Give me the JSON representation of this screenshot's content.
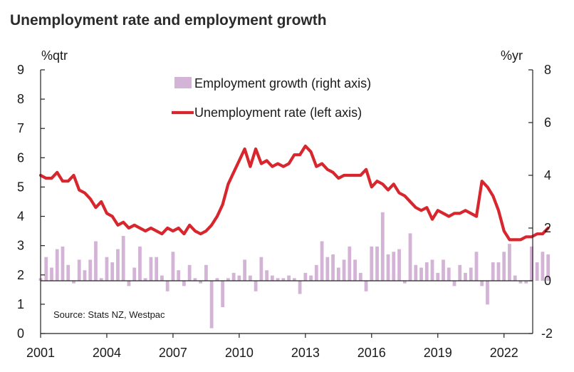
{
  "chart_data": {
    "type": "bar+line",
    "title": "Unemployment rate and employment growth",
    "left_axis_label": "%qtr",
    "right_axis_label": "%yr",
    "left_ylim": [
      0,
      9
    ],
    "right_ylim": [
      -2,
      8
    ],
    "left_ticks": [
      "0",
      "1",
      "2",
      "3",
      "4",
      "5",
      "6",
      "7",
      "8",
      "9"
    ],
    "right_ticks": [
      "-2",
      "0",
      "2",
      "4",
      "6",
      "8"
    ],
    "x_ticks": [
      "2001",
      "2004",
      "2007",
      "2010",
      "2013",
      "2016",
      "2019",
      "2022"
    ],
    "x_tick_years": [
      2001,
      2004,
      2007,
      2010,
      2013,
      2016,
      2019,
      2022
    ],
    "x_range": [
      2001,
      2023.3
    ],
    "start_year": 2001.0,
    "step_years": 0.25,
    "legend": {
      "bars": "Employment growth (right axis)",
      "line": "Unemployment rate (left axis)"
    },
    "source": "Source: Stats NZ, Westpac",
    "colors": {
      "bars": "#d4b4d6",
      "line": "#d7262d",
      "axis": "#222222"
    },
    "series": [
      {
        "name": "Unemployment rate (left axis)",
        "axis": "left",
        "type": "line",
        "values": [
          5.4,
          5.3,
          5.3,
          5.5,
          5.2,
          5.2,
          5.4,
          4.9,
          4.8,
          4.6,
          4.3,
          4.5,
          4.1,
          4.0,
          3.7,
          3.8,
          3.6,
          3.7,
          3.6,
          3.5,
          3.6,
          3.5,
          3.4,
          3.6,
          3.5,
          3.6,
          3.4,
          3.7,
          3.5,
          3.4,
          3.5,
          3.7,
          4.0,
          4.4,
          5.1,
          5.5,
          5.9,
          6.3,
          5.7,
          6.3,
          5.8,
          5.9,
          5.7,
          5.8,
          5.7,
          5.8,
          6.1,
          6.1,
          6.4,
          6.2,
          5.7,
          5.8,
          5.6,
          5.5,
          5.3,
          5.4,
          5.4,
          5.4,
          5.4,
          5.6,
          5.0,
          5.2,
          5.1,
          4.9,
          5.1,
          4.8,
          4.7,
          4.5,
          4.3,
          4.2,
          4.3,
          3.9,
          4.2,
          4.1,
          4.0,
          4.1,
          4.1,
          4.2,
          4.1,
          4.0,
          5.2,
          5.0,
          4.7,
          4.2,
          3.5,
          3.2,
          3.2,
          3.2,
          3.3,
          3.3,
          3.4,
          3.4,
          3.6
        ]
      },
      {
        "name": "Employment growth (right axis)",
        "axis": "right",
        "type": "bar",
        "values": [
          0.1,
          0.9,
          0.5,
          1.2,
          1.3,
          0.6,
          -0.1,
          0.8,
          0.4,
          0.8,
          1.5,
          0.1,
          0.9,
          0.7,
          1.2,
          1.7,
          -0.2,
          0.5,
          1.3,
          0.1,
          0.9,
          0.9,
          0.2,
          -0.4,
          1.1,
          0.4,
          -0.2,
          0.6,
          0.1,
          -0.1,
          0.6,
          -1.8,
          0.1,
          -1.0,
          0.1,
          0.3,
          0.2,
          0.8,
          0.2,
          -0.4,
          0.9,
          0.4,
          0.2,
          0.1,
          0.1,
          0.2,
          0.1,
          -0.5,
          0.3,
          0.2,
          0.6,
          1.5,
          0.9,
          1.0,
          0.5,
          0.8,
          1.3,
          0.8,
          0.3,
          -0.4,
          1.3,
          1.3,
          2.6,
          1.0,
          1.1,
          1.2,
          -0.1,
          1.8,
          0.6,
          0.5,
          0.7,
          0.8,
          0.3,
          0.8,
          0.5,
          -0.2,
          0.6,
          0.3,
          0.5,
          1.1,
          -0.2,
          -0.9,
          0.7,
          0.7,
          1.1,
          1.4,
          0.2,
          -0.1,
          -0.1,
          1.3,
          0.7,
          1.1,
          1.0
        ]
      }
    ]
  }
}
